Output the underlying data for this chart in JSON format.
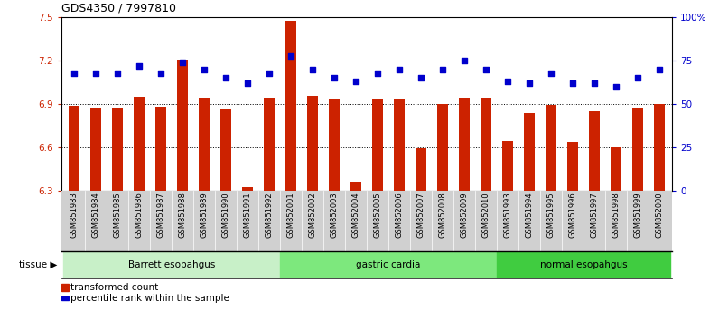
{
  "title": "GDS4350 / 7997810",
  "samples": [
    "GSM851983",
    "GSM851984",
    "GSM851985",
    "GSM851986",
    "GSM851987",
    "GSM851988",
    "GSM851989",
    "GSM851990",
    "GSM851991",
    "GSM851992",
    "GSM852001",
    "GSM852002",
    "GSM852003",
    "GSM852004",
    "GSM852005",
    "GSM852006",
    "GSM852007",
    "GSM852008",
    "GSM852009",
    "GSM852010",
    "GSM851993",
    "GSM851994",
    "GSM851995",
    "GSM851996",
    "GSM851997",
    "GSM851998",
    "GSM851999",
    "GSM852000"
  ],
  "bar_values": [
    6.885,
    6.875,
    6.872,
    6.95,
    6.88,
    7.205,
    6.945,
    6.865,
    6.325,
    6.945,
    7.475,
    6.955,
    6.94,
    6.36,
    6.935,
    6.935,
    6.59,
    6.9,
    6.945,
    6.945,
    6.64,
    6.84,
    6.895,
    6.635,
    6.85,
    6.6,
    6.875,
    6.9
  ],
  "percentile_values": [
    68,
    68,
    68,
    72,
    68,
    74,
    70,
    65,
    62,
    68,
    78,
    70,
    65,
    63,
    68,
    70,
    65,
    70,
    75,
    70,
    63,
    62,
    68,
    62,
    62,
    60,
    65,
    70
  ],
  "groups": [
    {
      "label": "Barrett esopahgus",
      "start": 0,
      "end": 9,
      "color": "#c8f0c8"
    },
    {
      "label": "gastric cardia",
      "start": 10,
      "end": 19,
      "color": "#7de87d"
    },
    {
      "label": "normal esopahgus",
      "start": 20,
      "end": 27,
      "color": "#40cc40"
    }
  ],
  "ylim_left": [
    6.3,
    7.5
  ],
  "ylim_right": [
    0,
    100
  ],
  "yticks_left": [
    6.3,
    6.6,
    6.9,
    7.2,
    7.5
  ],
  "yticks_right": [
    0,
    25,
    50,
    75,
    100
  ],
  "ytick_labels_right": [
    "0",
    "25",
    "50",
    "75",
    "100%"
  ],
  "bar_color": "#cc2200",
  "dot_color": "#0000cc",
  "tick_area_color": "#d0d0d0",
  "tissue_label": "tissue",
  "legend_bar": "transformed count",
  "legend_dot": "percentile rank within the sample"
}
